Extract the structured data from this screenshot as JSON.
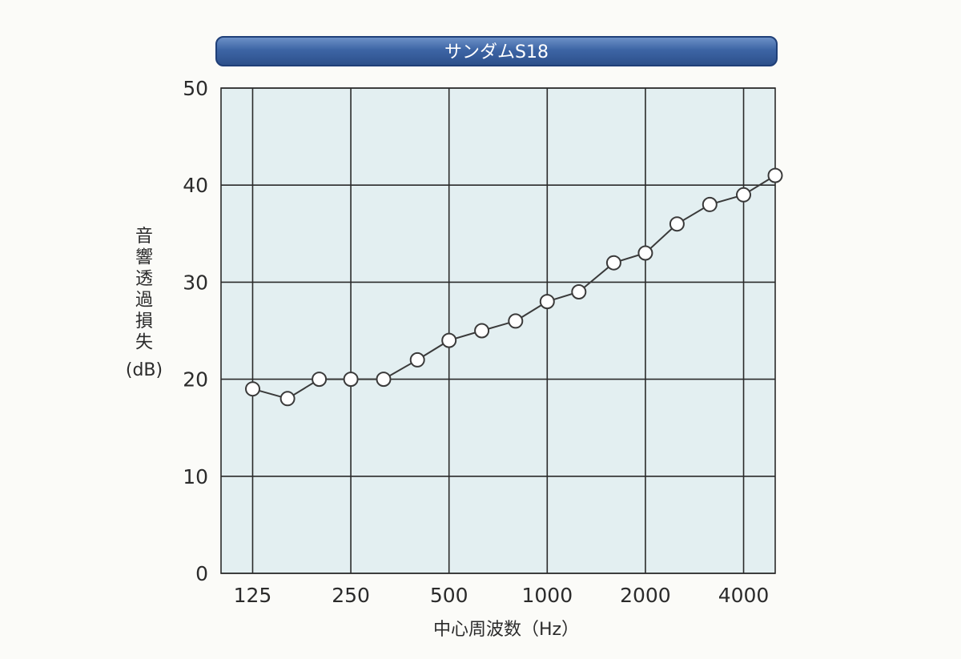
{
  "chart_data": {
    "type": "line",
    "title": "サンダムS18",
    "xlabel": "中心周波数（Hz）",
    "ylabel_lines": [
      "音",
      "響",
      "透",
      "過",
      "損",
      "失",
      "(dB)"
    ],
    "x_scale": "log2",
    "x_tick_labels": [
      "125",
      "250",
      "500",
      "1000",
      "2000",
      "4000"
    ],
    "x_tick_values": [
      125,
      250,
      500,
      1000,
      2000,
      4000
    ],
    "xlim": [
      100,
      5000
    ],
    "ylim": [
      0,
      50
    ],
    "y_ticks": [
      0,
      10,
      20,
      30,
      40,
      50
    ],
    "grid": true,
    "series": [
      {
        "marker": "open-circle",
        "x": [
          125,
          160,
          200,
          250,
          315,
          400,
          500,
          630,
          800,
          1000,
          1250,
          1600,
          2000,
          2500,
          3150,
          4000,
          5000
        ],
        "values": [
          19,
          18,
          20,
          20,
          20,
          22,
          24,
          25,
          26,
          28,
          29,
          32,
          33,
          36,
          38,
          39,
          41
        ]
      }
    ],
    "colors": {
      "plot_background": "#e3eff1",
      "grid": "#2a2a2a",
      "line": "#3a3a3a",
      "marker_fill": "#ffffff",
      "title_bar": "#3d65a5"
    }
  }
}
